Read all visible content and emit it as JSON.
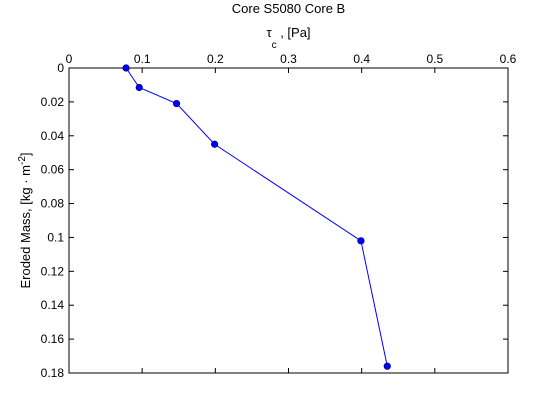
{
  "chart_data": {
    "type": "line",
    "title": "Core S5080 Core B",
    "xlabel": {
      "main": "τ",
      "sub": "c",
      "rest": " , [Pa]"
    },
    "ylabel": {
      "main": "Eroded Mass, [kg · m",
      "sup": "-2",
      "rest": "]"
    },
    "x_axis_position": "top",
    "y_axis_reversed": true,
    "xlim": [
      0,
      0.6
    ],
    "ylim": [
      0,
      0.18
    ],
    "xticks": [
      0,
      0.1,
      0.2,
      0.3,
      0.4,
      0.5,
      0.6
    ],
    "xtick_labels": [
      "0",
      "0.1",
      "0.2",
      "0.3",
      "0.4",
      "0.5",
      "0.6"
    ],
    "yticks": [
      0,
      0.02,
      0.04,
      0.06,
      0.08,
      0.1,
      0.12,
      0.14,
      0.16,
      0.18
    ],
    "ytick_labels": [
      "0",
      "0.02",
      "0.04",
      "0.06",
      "0.08",
      "0.1",
      "0.12",
      "0.14",
      "0.16",
      "0.18"
    ],
    "grid": false,
    "series": [
      {
        "color": "#0000ff",
        "marker": "circle",
        "points": [
          {
            "x": 0.078,
            "y": 0.0
          },
          {
            "x": 0.096,
            "y": 0.0115
          },
          {
            "x": 0.147,
            "y": 0.021
          },
          {
            "x": 0.199,
            "y": 0.045
          },
          {
            "x": 0.399,
            "y": 0.102
          },
          {
            "x": 0.435,
            "y": 0.176
          }
        ]
      }
    ]
  }
}
